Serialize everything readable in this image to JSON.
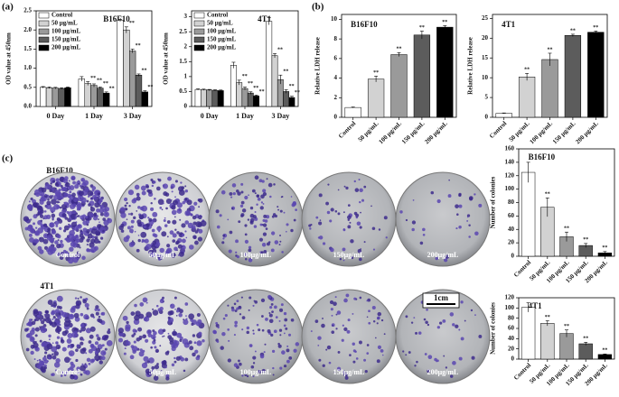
{
  "panel_labels": [
    "(a)",
    "(b)",
    "(c)"
  ],
  "plates": {
    "rows": [
      {
        "name": "B16F10",
        "labels": [
          "Control",
          "50μg/mL",
          "100μg/mL",
          "150μg/mL",
          "200μg/mL"
        ]
      },
      {
        "name": "4T1",
        "labels": [
          "Control",
          "50μg/mL",
          "100μg/mL",
          "150μg/mL",
          "200μg/mL"
        ]
      }
    ],
    "scale_bar": "1cm"
  },
  "chart_data": [
    {
      "type": "grouped_bar",
      "title": "B16F10",
      "ylabel": "OD value at 450nm",
      "categories": [
        "0 Day",
        "1 Day",
        "3 Day"
      ],
      "series": [
        {
          "name": "Control",
          "color": "#ffffff",
          "values": [
            0.5,
            0.72,
            2.25
          ],
          "errors": [
            0.02,
            0.06,
            0.03
          ],
          "annotations": [
            null,
            null,
            null
          ]
        },
        {
          "name": "50 μg/mL",
          "color": "#d2d2d2",
          "values": [
            0.49,
            0.6,
            2.0
          ],
          "errors": [
            0.02,
            0.05,
            0.08
          ],
          "annotations": [
            null,
            "**",
            "**"
          ]
        },
        {
          "name": "100 μg/mL",
          "color": "#9a9a9a",
          "values": [
            0.48,
            0.55,
            1.45
          ],
          "errors": [
            0.02,
            0.04,
            0.05
          ],
          "annotations": [
            null,
            "**",
            "**"
          ]
        },
        {
          "name": "150 μg/mL",
          "color": "#5c5c5c",
          "values": [
            0.47,
            0.48,
            0.82
          ],
          "errors": [
            0.02,
            0.03,
            0.03
          ],
          "annotations": [
            null,
            "**",
            "**"
          ]
        },
        {
          "name": "200 μg/mL",
          "color": "#000000",
          "values": [
            0.49,
            0.35,
            0.38
          ],
          "errors": [
            0.02,
            0.03,
            0.03
          ],
          "annotations": [
            null,
            "**",
            "**"
          ]
        }
      ],
      "ylim": [
        0,
        2.5
      ],
      "yticks": [
        {
          "value": 0,
          "label": "0.0"
        },
        0.5,
        {
          "value": 1,
          "label": "1.0"
        },
        1.5,
        {
          "value": 2,
          "label": "2.0"
        },
        2.5
      ],
      "legend": "upper left"
    },
    {
      "type": "grouped_bar",
      "title": "4T1",
      "ylabel": "OD value at 450nm",
      "categories": [
        "0 Day",
        "1 Day",
        "3 Day"
      ],
      "series": [
        {
          "name": "Control",
          "color": "#ffffff",
          "values": [
            0.57,
            1.38,
            2.85
          ],
          "errors": [
            0.02,
            0.1,
            0.12
          ],
          "annotations": [
            null,
            null,
            null
          ]
        },
        {
          "name": "50 μg/mL",
          "color": "#d2d2d2",
          "values": [
            0.56,
            0.8,
            1.7
          ],
          "errors": [
            0.02,
            0.08,
            0.07
          ],
          "annotations": [
            null,
            "**",
            "**"
          ]
        },
        {
          "name": "100 μg/mL",
          "color": "#9a9a9a",
          "values": [
            0.55,
            0.6,
            0.9
          ],
          "errors": [
            0.02,
            0.05,
            0.15
          ],
          "annotations": [
            null,
            "**",
            "**"
          ]
        },
        {
          "name": "150 μg/mL",
          "color": "#5c5c5c",
          "values": [
            0.54,
            0.45,
            0.5
          ],
          "errors": [
            0.02,
            0.04,
            0.06
          ],
          "annotations": [
            null,
            "**",
            "**"
          ]
        },
        {
          "name": "200 μg/mL",
          "color": "#000000",
          "values": [
            0.53,
            0.35,
            0.3
          ],
          "errors": [
            0.02,
            0.03,
            0.04
          ],
          "annotations": [
            null,
            "**",
            "**"
          ]
        }
      ],
      "ylim": [
        0,
        3.2
      ],
      "yticks": [
        0,
        0.5,
        1,
        1.5,
        2,
        2.5,
        3
      ],
      "legend": "upper left"
    },
    {
      "type": "bar",
      "title": "B16F10",
      "ylabel": "Relative LDH release",
      "categories": [
        "Control",
        "50 μg/mL",
        "100 μg/mL",
        "150 μg/mL",
        "200 μg/mL"
      ],
      "values": [
        1,
        3.9,
        6.4,
        8.4,
        9.2
      ],
      "errors": [
        0.05,
        0.3,
        0.2,
        0.4,
        0.15
      ],
      "annotations": [
        null,
        "**",
        "**",
        "**",
        "**"
      ],
      "colors": [
        "#ffffff",
        "#d2d2d2",
        "#9a9a9a",
        "#5c5c5c",
        "#000000"
      ],
      "ylim": [
        0,
        10.5
      ],
      "yticks": [
        0,
        2,
        4,
        6,
        8,
        10
      ]
    },
    {
      "type": "bar",
      "title": "4T1",
      "ylabel": "Relative LDH release",
      "categories": [
        "Control",
        "50 μg/mL",
        "100 μg/mL",
        "150 μg/mL",
        "200 μg/mL"
      ],
      "values": [
        1,
        10.2,
        14.6,
        20.7,
        21.5
      ],
      "errors": [
        0.1,
        0.9,
        1.6,
        0.3,
        0.3
      ],
      "annotations": [
        null,
        "**",
        "**",
        "**",
        "**"
      ],
      "colors": [
        "#ffffff",
        "#d2d2d2",
        "#9a9a9a",
        "#5c5c5c",
        "#000000"
      ],
      "ylim": [
        0,
        26
      ],
      "yticks": [
        0,
        5,
        10,
        15,
        20,
        25
      ]
    },
    {
      "type": "bar",
      "title": "B16F10",
      "ylabel": "Number of colonies",
      "categories": [
        "Control",
        "50 μg/mL",
        "100 μg/mL",
        "150 μg/mL",
        "200 μg/mL"
      ],
      "values": [
        125,
        73,
        29,
        16,
        5
      ],
      "errors": [
        15,
        14,
        7,
        3,
        2
      ],
      "annotations": [
        null,
        "**",
        "**",
        "**",
        "**"
      ],
      "colors": [
        "#ffffff",
        "#d2d2d2",
        "#9a9a9a",
        "#5c5c5c",
        "#000000"
      ],
      "ylim": [
        0,
        160
      ],
      "yticks": [
        0,
        20,
        40,
        60,
        80,
        100,
        120,
        140,
        160
      ]
    },
    {
      "type": "bar",
      "title": "4T1",
      "ylabel": "Number of colonies",
      "categories": [
        "Control",
        "50 μg/mL",
        "100 μg/mL",
        "150 μg/mL",
        "200 μg/mL"
      ],
      "values": [
        101,
        70,
        50,
        30,
        9
      ],
      "errors": [
        9,
        5,
        7,
        3,
        1
      ],
      "annotations": [
        null,
        "**",
        "**",
        "**",
        "**"
      ],
      "colors": [
        "#ffffff",
        "#d2d2d2",
        "#9a9a9a",
        "#5c5c5c",
        "#000000"
      ],
      "ylim": [
        0,
        120
      ],
      "yticks": [
        0,
        20,
        40,
        60,
        80,
        100,
        120
      ]
    }
  ]
}
